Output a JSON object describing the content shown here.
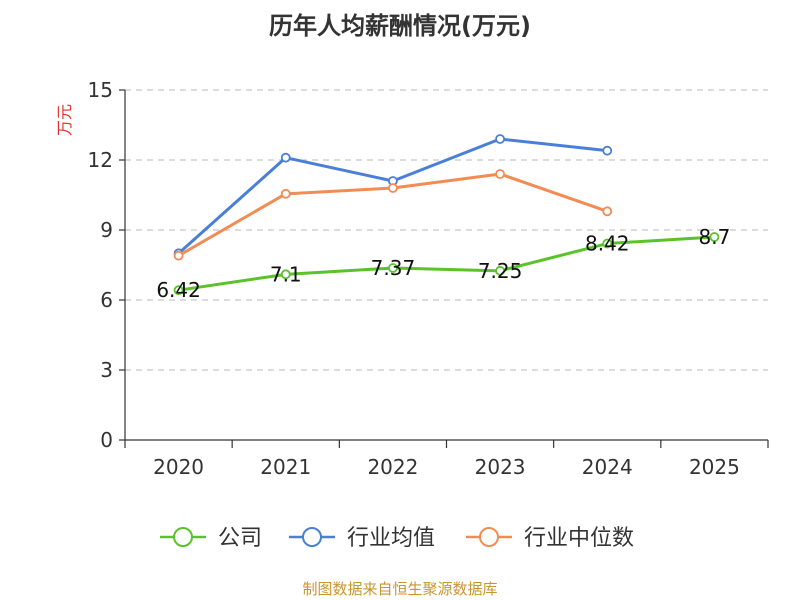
{
  "title": "历年人均薪酬情况(万元)",
  "footer": "制图数据来自恒生聚源数据库",
  "chart_data": {
    "type": "line",
    "title": "历年人均薪酬情况(万元)",
    "ylabel": "万元",
    "xlabel": "",
    "ylim": [
      0,
      15
    ],
    "yticks": [
      0,
      3,
      6,
      9,
      12,
      15
    ],
    "categories": [
      "2020",
      "2021",
      "2022",
      "2023",
      "2024",
      "2025"
    ],
    "grid": true,
    "legend": "bottom",
    "series": [
      {
        "name": "公司",
        "color": "#5bc22a",
        "values": [
          6.42,
          7.1,
          7.37,
          7.25,
          8.42,
          8.7
        ],
        "labels": [
          "6.42",
          "7.1",
          "7.37",
          "7.25",
          "8.42",
          "8.7"
        ]
      },
      {
        "name": "行业均值",
        "color": "#4a7fd8",
        "values": [
          8.0,
          12.1,
          11.1,
          12.9,
          12.4,
          null
        ]
      },
      {
        "name": "行业中位数",
        "color": "#f28c55",
        "values": [
          7.9,
          10.55,
          10.8,
          11.4,
          9.8,
          null
        ]
      }
    ]
  }
}
